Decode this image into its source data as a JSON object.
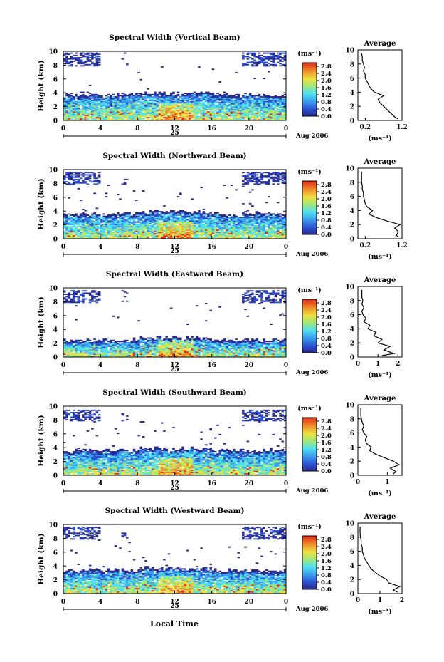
{
  "figure": {
    "xlabel": "Local Time",
    "date_label": "Aug 2006",
    "day_label": "25",
    "unit_label": "(ms⁻¹)",
    "average_title": "Average",
    "average_xlabel": "(ms⁻¹)",
    "y_axis_label": "Height (km)"
  },
  "chart_data": [
    {
      "type": "heatmap",
      "title": "Spectral Width (Vertical Beam)",
      "ylabel": "Height (km)",
      "xlim": [
        0,
        24
      ],
      "ylim": [
        0,
        10
      ],
      "xticks": [
        "0",
        "4",
        "8",
        "12",
        "16",
        "20",
        "0"
      ],
      "yticks": [
        "0",
        "2",
        "4",
        "6",
        "8",
        "10"
      ],
      "colorbar": {
        "ticks": [
          "0.0",
          "0.4",
          "0.8",
          "1.2",
          "1.6",
          "2.0",
          "2.4",
          "2.8"
        ],
        "range": [
          0,
          3.0
        ]
      },
      "layer_top_km": 3.3,
      "cloud_echo_top_km": 9.8,
      "average_profile": {
        "title": "Average",
        "xlim": [
          0,
          1.2
        ],
        "xticks": [
          "0.2",
          "1.2"
        ],
        "height_km": [
          0.2,
          0.5,
          1.0,
          1.5,
          2.0,
          2.5,
          3.0,
          3.5,
          4.0,
          4.5,
          5.0,
          5.5,
          6.0,
          6.5,
          7.0,
          7.5,
          8.0,
          8.5,
          9.0,
          9.5
        ],
        "width_ms": [
          1.1,
          1.0,
          0.9,
          0.8,
          0.7,
          0.6,
          0.55,
          0.7,
          0.45,
          0.35,
          0.3,
          0.25,
          0.2,
          0.2,
          0.15,
          0.18,
          0.15,
          0.12,
          0.12,
          0.1
        ]
      }
    },
    {
      "type": "heatmap",
      "title": "Spectral Width (Northward Beam)",
      "ylabel": "Height (km)",
      "xlim": [
        0,
        24
      ],
      "ylim": [
        0,
        10
      ],
      "xticks": [
        "0",
        "4",
        "8",
        "12",
        "16",
        "20",
        "0"
      ],
      "yticks": [
        "0",
        "2",
        "4",
        "6",
        "8",
        "10"
      ],
      "colorbar": {
        "ticks": [
          "0.0",
          "0.4",
          "0.8",
          "1.2",
          "1.6",
          "2.0",
          "2.4",
          "2.8"
        ],
        "range": [
          0,
          3.0
        ]
      },
      "layer_top_km": 3.2,
      "cloud_echo_top_km": 9.6,
      "average_profile": {
        "title": "Average",
        "xlim": [
          0,
          1.2
        ],
        "xticks": [
          "0.2",
          "1.2"
        ],
        "height_km": [
          0.2,
          0.5,
          1.0,
          1.5,
          2.0,
          2.5,
          3.0,
          3.5,
          4.0,
          4.5,
          5.0,
          5.5,
          6.0,
          6.5,
          7.0,
          7.5,
          8.0,
          8.5,
          9.0,
          9.5
        ],
        "width_ms": [
          1.1,
          1.05,
          1.1,
          1.0,
          1.15,
          0.8,
          0.5,
          0.3,
          0.4,
          0.25,
          0.2,
          0.18,
          0.15,
          0.15,
          0.12,
          0.12,
          0.1,
          0.1,
          0.1,
          0.1
        ]
      }
    },
    {
      "type": "heatmap",
      "title": "Spectral Width (Eastward Beam)",
      "ylabel": "Height (km)",
      "xlim": [
        0,
        24
      ],
      "ylim": [
        0,
        10
      ],
      "xticks": [
        "0",
        "4",
        "8",
        "12",
        "16",
        "20",
        "0"
      ],
      "yticks": [
        "0",
        "2",
        "4",
        "6",
        "8",
        "10"
      ],
      "colorbar": {
        "ticks": [
          "0.0",
          "0.4",
          "0.8",
          "1.2",
          "1.6",
          "2.0",
          "2.4",
          "2.8"
        ],
        "range": [
          0,
          3.0
        ]
      },
      "layer_top_km": 2.1,
      "cloud_echo_top_km": 9.6,
      "average_profile": {
        "title": "Average",
        "xlim": [
          0,
          2.2
        ],
        "xticks": [
          "0",
          "1",
          "2"
        ],
        "height_km": [
          0.2,
          0.5,
          1.0,
          1.5,
          2.0,
          2.5,
          3.0,
          3.5,
          4.0,
          4.5,
          5.0,
          5.5,
          6.0,
          6.5,
          7.0,
          7.5,
          8.0,
          8.5,
          9.0,
          9.5
        ],
        "width_ms": [
          1.2,
          1.8,
          1.3,
          1.6,
          1.0,
          1.2,
          0.8,
          0.9,
          0.5,
          0.6,
          0.3,
          0.4,
          0.25,
          0.2,
          0.3,
          0.2,
          0.25,
          0.2,
          0.2,
          0.2
        ]
      }
    },
    {
      "type": "heatmap",
      "title": "Spectral Width (Southward Beam)",
      "ylabel": "Height (km)",
      "xlim": [
        0,
        24
      ],
      "ylim": [
        0,
        10
      ],
      "xticks": [
        "0",
        "4",
        "8",
        "12",
        "16",
        "20",
        "0"
      ],
      "yticks": [
        "0",
        "2",
        "4",
        "6",
        "8",
        "10"
      ],
      "colorbar": {
        "ticks": [
          "0.0",
          "0.4",
          "0.8",
          "1.2",
          "1.6",
          "2.0",
          "2.4",
          "2.8"
        ],
        "range": [
          0,
          3.0
        ]
      },
      "layer_top_km": 3.2,
      "cloud_echo_top_km": 9.4,
      "average_profile": {
        "title": "Average",
        "xlim": [
          0,
          1.5
        ],
        "xticks": [
          "0",
          "1"
        ],
        "height_km": [
          0.2,
          0.5,
          1.0,
          1.5,
          2.0,
          2.5,
          3.0,
          3.5,
          4.0,
          4.5,
          5.0,
          5.5,
          6.0,
          6.5,
          7.0,
          7.5,
          8.0,
          8.5,
          9.0,
          9.5
        ],
        "width_ms": [
          1.2,
          1.3,
          1.1,
          1.4,
          1.2,
          0.9,
          0.6,
          0.4,
          0.45,
          0.3,
          0.25,
          0.3,
          0.2,
          0.15,
          0.2,
          0.15,
          0.12,
          0.1,
          0.1,
          0.1
        ]
      }
    },
    {
      "type": "heatmap",
      "title": "Spectral Width (Westward Beam)",
      "ylabel": "Height (km)",
      "xlim": [
        0,
        24
      ],
      "ylim": [
        0,
        10
      ],
      "xticks": [
        "0",
        "4",
        "8",
        "12",
        "16",
        "20",
        "0"
      ],
      "yticks": [
        "0",
        "2",
        "4",
        "6",
        "8",
        "10"
      ],
      "colorbar": {
        "ticks": [
          "0.0",
          "0.4",
          "0.8",
          "1.2",
          "1.6",
          "2.0",
          "2.4",
          "2.8"
        ],
        "range": [
          0,
          3.0
        ]
      },
      "layer_top_km": 3.0,
      "cloud_echo_top_km": 9.6,
      "average_profile": {
        "title": "Average",
        "xlim": [
          0,
          2.0
        ],
        "xticks": [
          "0",
          "1",
          "2"
        ],
        "height_km": [
          0.2,
          0.5,
          1.0,
          1.5,
          2.0,
          2.5,
          3.0,
          3.5,
          4.0,
          4.5,
          5.0,
          5.5,
          6.0,
          6.5,
          7.0,
          7.5,
          8.0,
          8.5,
          9.0,
          9.5
        ],
        "width_ms": [
          1.8,
          1.6,
          1.9,
          1.4,
          1.3,
          1.0,
          0.8,
          0.6,
          0.5,
          0.4,
          0.3,
          0.25,
          0.2,
          0.2,
          0.15,
          0.15,
          0.12,
          0.1,
          0.1,
          0.1
        ]
      }
    }
  ]
}
